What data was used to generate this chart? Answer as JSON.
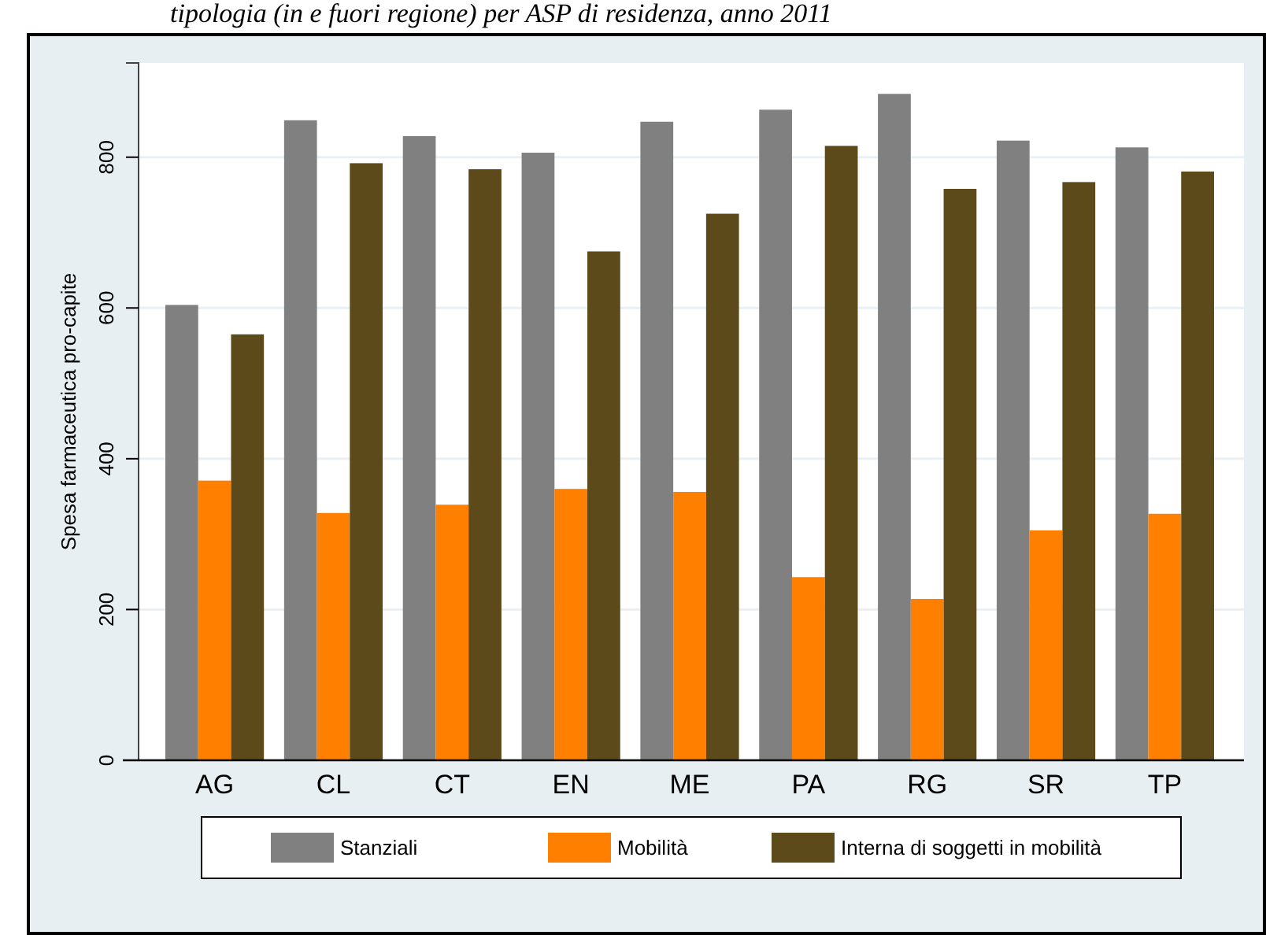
{
  "chart_data": {
    "type": "bar",
    "title": "tipologia (in e fuori regione) per ASP di residenza, anno 2011",
    "ylabel": "Spesa farmaceutica pro-capite",
    "categories": [
      "AG",
      "CL",
      "CT",
      "EN",
      "ME",
      "PA",
      "RG",
      "SR",
      "TP"
    ],
    "series": [
      {
        "name": "Stanziali",
        "color": "#808080",
        "values": [
          604,
          849,
          828,
          806,
          847,
          863,
          884,
          822,
          813
        ]
      },
      {
        "name": "Mobilità",
        "color": "#ff7f00",
        "values": [
          371,
          328,
          339,
          360,
          356,
          243,
          214,
          305,
          327
        ]
      },
      {
        "name": "Interna di soggetti in mobilità",
        "color": "#5c4a1a",
        "values": [
          565,
          792,
          784,
          675,
          725,
          815,
          758,
          767,
          781
        ]
      }
    ],
    "ylim": [
      0,
      925
    ],
    "yticks": [
      0,
      200,
      400,
      600,
      800
    ],
    "grid": "y",
    "legend": "bottom"
  }
}
